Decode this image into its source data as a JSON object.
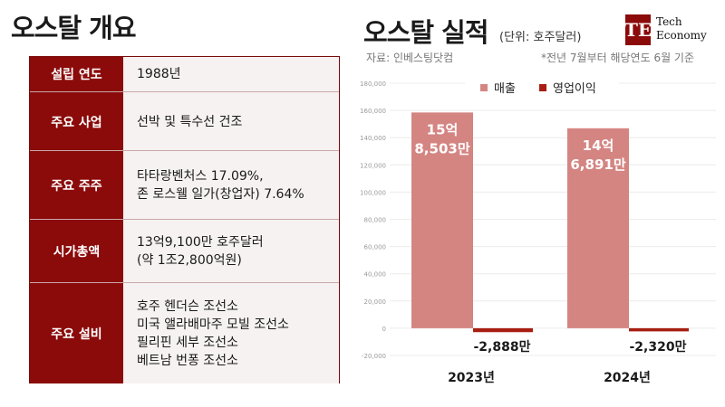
{
  "overview": {
    "title": "오스탈 개요",
    "rows": [
      {
        "label": "설립 연도",
        "lines": [
          "1988년"
        ]
      },
      {
        "label": "주요 사업",
        "lines": [
          "선박 및 특수선 건조"
        ]
      },
      {
        "label": "주요 주주",
        "lines": [
          "타타랑벤처스 17.09%,",
          "존 로스웰 일가(창업자) 7.64%"
        ]
      },
      {
        "label": "시가총액",
        "lines": [
          "13억9,100만 호주달러",
          "(약 1조2,800억원)"
        ]
      },
      {
        "label": "주요 설비",
        "lines": [
          "호주 헨더슨 조선소",
          "미국 앨라배마주 모빌 조선소",
          "필리핀 세부 조선소",
          "베트남 번퐁 조선소"
        ]
      }
    ]
  },
  "performance": {
    "title": "오스탈 실적",
    "unit": "(단위: 호주달러)",
    "source": "자료: 인베스팅닷컴",
    "footnote": "*전년 7월부터 해당연도 6월 기준"
  },
  "logo": {
    "mark": "TE",
    "line1": "Tech",
    "line2": "Economy"
  },
  "chart_data": {
    "type": "bar",
    "categories": [
      "2023년",
      "2024년"
    ],
    "series": [
      {
        "name": "매출",
        "values": [
          1585030000,
          1468910000
        ],
        "labels": [
          "15억\n8,503만",
          "14억\n6,891만"
        ],
        "color": "#d48582"
      },
      {
        "name": "영업이익",
        "values": [
          -28880000,
          -23200000
        ],
        "labels": [
          "-2,888만",
          "-2,320만"
        ],
        "color": "#a81e12"
      }
    ],
    "ylim": [
      -200000000,
      1800000000
    ],
    "yticks": [
      "-20,000",
      "0",
      "20,000",
      "40,000",
      "60,000",
      "80,000",
      "100,000",
      "120,000",
      "140,000",
      "160,000",
      "180,000"
    ],
    "ytick_values": [
      -200000000,
      0,
      200000000,
      400000000,
      600000000,
      800000000,
      1000000000,
      1200000000,
      1400000000,
      1600000000,
      1800000000
    ],
    "grid": true,
    "legend": "top-center"
  }
}
